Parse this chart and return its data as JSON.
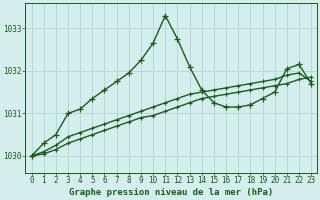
{
  "title": "Graphe pression niveau de la mer (hPa)",
  "bg_color": "#d4eeee",
  "grid_color": "#b8d8d8",
  "line_color": "#1a5c1a",
  "x_ticks": [
    0,
    1,
    2,
    3,
    4,
    5,
    6,
    7,
    8,
    9,
    10,
    11,
    12,
    13,
    14,
    15,
    16,
    17,
    18,
    19,
    20,
    21,
    22,
    23
  ],
  "y_ticks": [
    1030,
    1031,
    1032,
    1033
  ],
  "ylim": [
    1029.6,
    1033.6
  ],
  "xlim": [
    -0.5,
    23.5
  ],
  "main_line_x": [
    0,
    1,
    2,
    3,
    4,
    5,
    6,
    7,
    8,
    9,
    10,
    11,
    12,
    13,
    14,
    15,
    16,
    17,
    18,
    19,
    20,
    21,
    22,
    23
  ],
  "main_line_y": [
    1030.0,
    1030.3,
    1030.5,
    1031.0,
    1031.1,
    1031.35,
    1031.55,
    1031.75,
    1031.95,
    1032.25,
    1032.65,
    1033.3,
    1032.75,
    1032.1,
    1031.55,
    1031.25,
    1031.15,
    1031.15,
    1031.2,
    1031.35,
    1031.5,
    1032.05,
    1032.15,
    1031.7
  ],
  "line2_x": [
    0,
    1,
    2,
    3,
    4,
    5,
    6,
    7,
    8,
    9,
    10,
    11,
    12,
    13,
    14,
    15,
    16,
    17,
    18,
    19,
    20,
    21,
    22,
    23
  ],
  "line2_y": [
    1030.0,
    1030.05,
    1030.15,
    1030.3,
    1030.4,
    1030.5,
    1030.6,
    1030.7,
    1030.8,
    1030.9,
    1030.95,
    1031.05,
    1031.15,
    1031.25,
    1031.35,
    1031.4,
    1031.45,
    1031.5,
    1031.55,
    1031.6,
    1031.65,
    1031.7,
    1031.8,
    1031.85
  ],
  "line3_x": [
    0,
    1,
    2,
    3,
    4,
    5,
    6,
    7,
    8,
    9,
    10,
    11,
    12,
    13,
    14,
    15,
    16,
    17,
    18,
    19,
    20,
    21,
    22,
    23
  ],
  "line3_y": [
    1030.0,
    1030.1,
    1030.25,
    1030.45,
    1030.55,
    1030.65,
    1030.75,
    1030.85,
    1030.95,
    1031.05,
    1031.15,
    1031.25,
    1031.35,
    1031.45,
    1031.5,
    1031.55,
    1031.6,
    1031.65,
    1031.7,
    1031.75,
    1031.8,
    1031.9,
    1031.95,
    1031.75
  ],
  "tick_fontsize": 5.5,
  "label_fontsize": 6.5,
  "linewidth": 1.0,
  "markersize": 3.5
}
